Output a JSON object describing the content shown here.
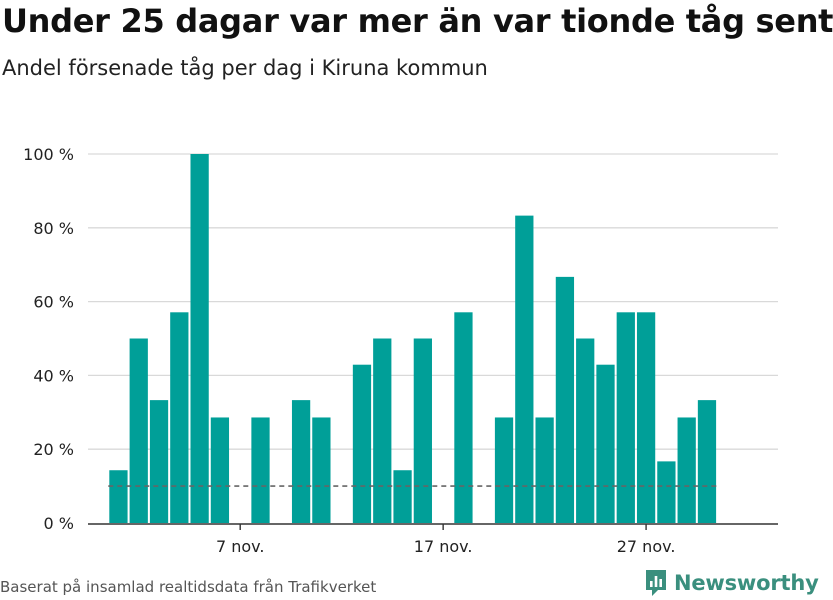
{
  "header": {
    "title": "Under 25 dagar var mer än var tionde tåg sent",
    "subtitle": "Andel försenade tåg per dag i Kiruna kommun"
  },
  "footer": {
    "source": "Baserat på insamlad realtidsdata från Trafikverket",
    "brand": "Newsworthy"
  },
  "colors": {
    "bar": "#009f98",
    "grid": "#d9d9d9",
    "axis": "#333333",
    "reference_line": "#666666",
    "brand": "#3a8f7e"
  },
  "chart_data": {
    "type": "bar",
    "title": "Under 25 dagar var mer än var tionde tåg sent",
    "subtitle": "Andel försenade tåg per dag i Kiruna kommun",
    "xlabel": "",
    "ylabel": "",
    "x": [
      1,
      2,
      3,
      4,
      5,
      6,
      7,
      8,
      9,
      10,
      11,
      12,
      13,
      14,
      15,
      16,
      17,
      18,
      19,
      20,
      21,
      22,
      23,
      24,
      25,
      26,
      27,
      28,
      29,
      30
    ],
    "values": [
      14.3,
      50,
      33.3,
      57.1,
      100,
      28.6,
      0,
      28.6,
      0,
      33.3,
      28.6,
      0,
      42.9,
      50,
      14.3,
      50,
      0,
      57.1,
      0,
      28.6,
      83.3,
      28.6,
      66.7,
      50,
      42.9,
      57.1,
      57.1,
      16.7,
      28.6,
      33.3
    ],
    "x_tick_positions": [
      7,
      17,
      27
    ],
    "x_tick_labels": [
      "7 nov.",
      "17 nov.",
      "27 nov."
    ],
    "y_ticks": [
      0,
      20,
      40,
      60,
      80,
      100
    ],
    "y_tick_labels": [
      "0 %",
      "20 %",
      "40 %",
      "60 %",
      "80 %",
      "100 %"
    ],
    "ylim": [
      0,
      100
    ],
    "xlim": [
      -0.5,
      33.5
    ],
    "reference_line": 10,
    "grid": true
  }
}
